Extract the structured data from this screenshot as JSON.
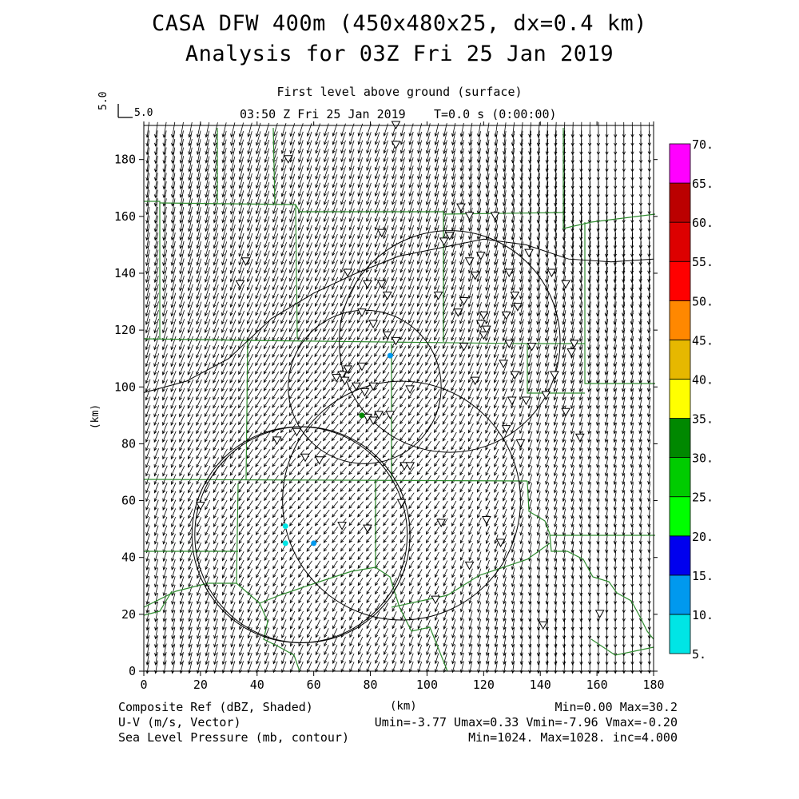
{
  "title": {
    "line1": "CASA DFW 400m (450x480x25, dx=0.4 km)",
    "line2": "Analysis for 03Z Fri 25 Jan 2019"
  },
  "subtitle": {
    "level": "First level above ground (surface)",
    "time": "03:50 Z Fri 25 Jan 2019",
    "elapsed": "T=0.0 s (0:00:00)"
  },
  "reference_vector": {
    "label_vertical": "5.0",
    "label_horizontal": "5.0"
  },
  "axes": {
    "x_label": "(km)",
    "y_label": "(km)",
    "x_ticks": [
      "0",
      "20",
      "40",
      "60",
      "80",
      "100",
      "120",
      "140",
      "160",
      "180"
    ],
    "y_ticks": [
      "0",
      "20",
      "40",
      "60",
      "80",
      "100",
      "120",
      "140",
      "160",
      "180"
    ],
    "x_range": [
      0,
      180
    ],
    "y_range": [
      0,
      192
    ]
  },
  "colorbar": {
    "levels": [
      "5.",
      "10.",
      "15.",
      "20.",
      "25.",
      "30.",
      "35.",
      "40.",
      "45.",
      "50.",
      "55.",
      "60.",
      "65.",
      "70."
    ],
    "colors": [
      "#00e5e5",
      "#0099ee",
      "#0000ee",
      "#00ff00",
      "#00cc00",
      "#008800",
      "#ffff00",
      "#e6b800",
      "#ff8800",
      "#ff0000",
      "#dd0000",
      "#bb0000",
      "#ff00ff"
    ]
  },
  "footer": {
    "field1_name": "Composite Ref (dBZ, Shaded)",
    "field1_stats": "Min=0.00 Max=30.2",
    "field2_name": "U-V (m/s, Vector)",
    "field2_stats": "Umin=-3.77 Umax=0.33 Vmin=-7.96 Vmax=-0.20",
    "field3_name": "Sea Level Pressure (mb, contour)",
    "field3_stats": "Min=1024. Max=1028. inc=4.000"
  },
  "map_data": {
    "radar_rings_km": [
      {
        "cx": 108,
        "cy": 116,
        "r": 39
      },
      {
        "cx": 78,
        "cy": 100,
        "r": 27
      },
      {
        "cx": 91,
        "cy": 60,
        "r": 42
      },
      {
        "cx": 56,
        "cy": 48,
        "r": 38
      },
      {
        "cx": 55,
        "cy": 48,
        "r": 38
      }
    ],
    "pressure_contour_km": [
      [
        0,
        98
      ],
      [
        15,
        102
      ],
      [
        30,
        110
      ],
      [
        45,
        124
      ],
      [
        60,
        133
      ],
      [
        75,
        140
      ],
      [
        90,
        146
      ],
      [
        105,
        149
      ],
      [
        120,
        152
      ],
      [
        135,
        150
      ],
      [
        150,
        145
      ],
      [
        165,
        144
      ],
      [
        180,
        145
      ]
    ],
    "stations_km": [
      [
        51,
        180
      ],
      [
        89,
        192
      ],
      [
        89,
        185
      ],
      [
        36,
        144
      ],
      [
        34,
        136
      ],
      [
        84,
        154
      ],
      [
        72,
        140
      ],
      [
        79,
        136
      ],
      [
        84,
        136
      ],
      [
        86,
        132
      ],
      [
        77,
        126
      ],
      [
        81,
        122
      ],
      [
        77,
        107
      ],
      [
        72,
        106
      ],
      [
        70,
        104
      ],
      [
        68,
        103
      ],
      [
        71,
        102
      ],
      [
        75,
        100
      ],
      [
        78,
        98
      ],
      [
        81,
        100
      ],
      [
        86,
        118
      ],
      [
        89,
        116
      ],
      [
        94,
        99
      ],
      [
        79,
        89
      ],
      [
        81,
        88
      ],
      [
        83,
        90
      ],
      [
        87,
        90
      ],
      [
        47,
        81
      ],
      [
        57,
        75
      ],
      [
        62,
        74
      ],
      [
        54,
        84
      ],
      [
        92,
        72
      ],
      [
        94,
        72
      ],
      [
        91,
        59
      ],
      [
        70,
        51
      ],
      [
        79,
        50
      ],
      [
        105,
        52
      ],
      [
        113,
        114
      ],
      [
        129,
        115
      ],
      [
        137,
        114
      ],
      [
        131,
        104
      ],
      [
        127,
        108
      ],
      [
        115,
        144
      ],
      [
        119,
        146
      ],
      [
        113,
        130
      ],
      [
        117,
        139
      ],
      [
        120,
        125
      ],
      [
        119,
        122
      ],
      [
        121,
        120
      ],
      [
        120,
        118
      ],
      [
        129,
        140
      ],
      [
        128,
        125
      ],
      [
        132,
        128
      ],
      [
        136,
        147
      ],
      [
        131,
        132
      ],
      [
        144,
        140
      ],
      [
        149,
        136
      ],
      [
        151,
        112
      ],
      [
        152,
        115
      ],
      [
        145,
        104
      ],
      [
        142,
        97
      ],
      [
        149,
        91
      ],
      [
        130,
        95
      ],
      [
        135,
        95
      ],
      [
        128,
        85
      ],
      [
        133,
        80
      ],
      [
        121,
        53
      ],
      [
        126,
        45
      ],
      [
        115,
        37
      ],
      [
        103,
        25
      ],
      [
        111,
        126
      ],
      [
        104,
        132
      ],
      [
        117,
        102
      ],
      [
        124,
        160
      ],
      [
        115,
        160
      ],
      [
        106,
        151
      ],
      [
        112,
        163
      ],
      [
        108,
        153
      ],
      [
        154,
        82
      ],
      [
        161,
        20
      ],
      [
        141,
        16
      ],
      [
        20,
        58
      ]
    ],
    "echoes_km": [
      {
        "x": 77,
        "y": 90,
        "dbz": 30
      },
      {
        "x": 87,
        "y": 111,
        "dbz": 12
      },
      {
        "x": 50,
        "y": 51,
        "dbz": 7
      },
      {
        "x": 50,
        "y": 45,
        "dbz": 8
      },
      {
        "x": 60,
        "y": 45,
        "dbz": 13
      }
    ]
  }
}
